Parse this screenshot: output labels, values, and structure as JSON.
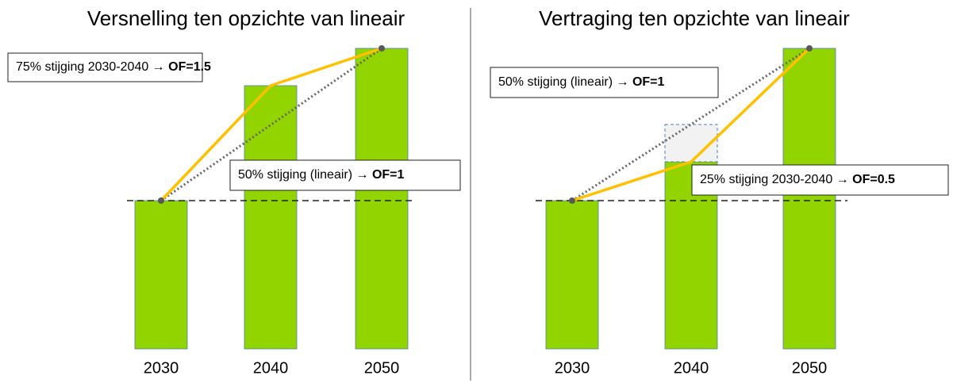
{
  "chart_data": [
    {
      "type": "bar",
      "title": "Versnelling ten opzichte van lineair",
      "categories": [
        "2030",
        "2040",
        "2050"
      ],
      "values": [
        187,
        332,
        379
      ],
      "color": "#92d400",
      "ylim": [
        0,
        380
      ],
      "annotations": [
        {
          "text": "75% stijging 2030-2040 → ",
          "bold": "OF=1.5"
        },
        {
          "text": "50% stijging (lineair) → ",
          "bold": "OF=1"
        }
      ]
    },
    {
      "type": "bar",
      "title": "Vertraging ten opzichte van lineair",
      "categories": [
        "2030",
        "2040",
        "2050"
      ],
      "values": [
        187,
        236,
        379
      ],
      "color": "#92d400",
      "ylim": [
        0,
        380
      ],
      "linear_2040": 283,
      "annotations": [
        {
          "text": "50% stijging (lineair) → ",
          "bold": "OF=1"
        },
        {
          "text": "25% stijging 2030-2040 → ",
          "bold": "OF=0.5"
        }
      ]
    }
  ]
}
